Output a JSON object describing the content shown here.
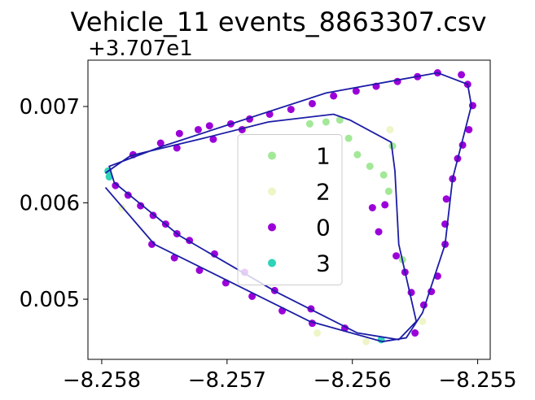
{
  "chart_data": {
    "type": "scatter",
    "title": "Vehicle_11 events_8863307.csv",
    "y_offset_label": "+3.707e1",
    "xlim": [
      -8.25811,
      -8.2549
    ],
    "ylim": [
      0.004376,
      0.007481
    ],
    "xticks": [
      {
        "value": -8.258,
        "label": "−8.258"
      },
      {
        "value": -8.257,
        "label": "−8.257"
      },
      {
        "value": -8.256,
        "label": "−8.256"
      },
      {
        "value": -8.255,
        "label": "−8.255"
      }
    ],
    "yticks": [
      0.005,
      0.006,
      0.007
    ],
    "legend": "center",
    "series": [
      {
        "name": "1",
        "color": "#a3e897",
        "x": [
          -8.25634,
          -8.25621,
          -8.2561,
          -8.25603,
          -8.25596,
          -8.25586,
          -8.25575,
          -8.25568,
          -8.25571,
          -8.2556
        ],
        "values": [
          0.00682,
          0.00684,
          0.00686,
          0.00667,
          0.0065,
          0.00638,
          0.00629,
          0.00659,
          0.00612,
          0.00541
        ]
      },
      {
        "name": "2",
        "color": "#eef5c6",
        "x": [
          -8.25784,
          -8.25628,
          -8.25589,
          -8.25544,
          -8.2557,
          -8.25686
        ],
        "values": [
          0.00595,
          0.00465,
          0.00456,
          0.00477,
          0.00676,
          0.00677
        ]
      },
      {
        "name": "0",
        "color": "#9b00d9",
        "x": [
          -8.25532,
          -8.25548,
          -8.25564,
          -8.25581,
          -8.25597,
          -8.25615,
          -8.25632,
          -8.25649,
          -8.25666,
          -8.25682,
          -8.25697,
          -8.25714,
          -8.25723,
          -8.25738,
          -8.25753,
          -8.25775,
          -8.25513,
          -8.25508,
          -8.25504,
          -8.25507,
          -8.25512,
          -8.25516,
          -8.2552,
          -8.25525,
          -8.25526,
          -8.25526,
          -8.25532,
          -8.25537,
          -8.25543,
          -8.2555,
          -8.25789,
          -8.25779,
          -8.25769,
          -8.25759,
          -8.25749,
          -8.2574,
          -8.2573,
          -8.2571,
          -8.25686,
          -8.25662,
          -8.25633,
          -8.25606,
          -8.2576,
          -8.25742,
          -8.25722,
          -8.25701,
          -8.2568,
          -8.25656,
          -8.25632,
          -8.25584,
          -8.25579,
          -8.25565,
          -8.25558,
          -8.25553,
          -8.25574,
          -8.2574,
          -8.25711,
          -8.25688
        ],
        "values": [
          0.00735,
          0.00731,
          0.00726,
          0.00721,
          0.00716,
          0.00711,
          0.00703,
          0.00697,
          0.00692,
          0.00687,
          0.00682,
          0.0068,
          0.00676,
          0.00672,
          0.00662,
          0.0065,
          0.00733,
          0.00723,
          0.00701,
          0.00676,
          0.0066,
          0.00646,
          0.00625,
          0.00604,
          0.00578,
          0.00557,
          0.00524,
          0.00508,
          0.00494,
          0.00465,
          0.00618,
          0.00608,
          0.00597,
          0.00587,
          0.00578,
          0.00568,
          0.00561,
          0.00547,
          0.00528,
          0.00509,
          0.0049,
          0.0047,
          0.00557,
          0.00543,
          0.0053,
          0.00517,
          0.00503,
          0.00488,
          0.00475,
          0.00595,
          0.0057,
          0.00545,
          0.00528,
          0.00507,
          0.00598,
          0.00657,
          0.00666,
          0.00676
        ]
      },
      {
        "name": "3",
        "color": "#2ed3b8",
        "x": [
          -8.25795,
          -8.25794,
          -8.25577
        ],
        "values": [
          0.00633,
          0.00627,
          0.00458
        ]
      }
    ],
    "line": {
      "color": "#1c1ca6",
      "x": [
        -8.25797,
        -8.25777,
        -8.25719,
        -8.25667,
        -8.25615,
        -8.25602,
        -8.25569,
        -8.25566,
        -8.25563,
        -8.25549,
        -8.25563,
        -8.25596,
        -8.2566,
        -8.25738,
        -8.2579,
        -8.25794,
        -8.25751,
        -8.25621,
        -8.25532,
        -8.25508,
        -8.25505,
        -8.2552,
        -8.25526,
        -8.25544,
        -8.25557,
        -8.25576,
        -8.25634,
        -8.25758,
        -8.25797
      ],
      "y": [
        0.00631,
        0.00649,
        0.00667,
        0.00684,
        0.00692,
        0.00686,
        0.00663,
        0.00633,
        0.00557,
        0.00477,
        0.00458,
        0.00465,
        0.00507,
        0.00566,
        0.00621,
        0.00638,
        0.00659,
        0.00714,
        0.00735,
        0.00723,
        0.00701,
        0.00625,
        0.00557,
        0.00486,
        0.0046,
        0.00456,
        0.00477,
        0.00557,
        0.00616
      ]
    }
  }
}
